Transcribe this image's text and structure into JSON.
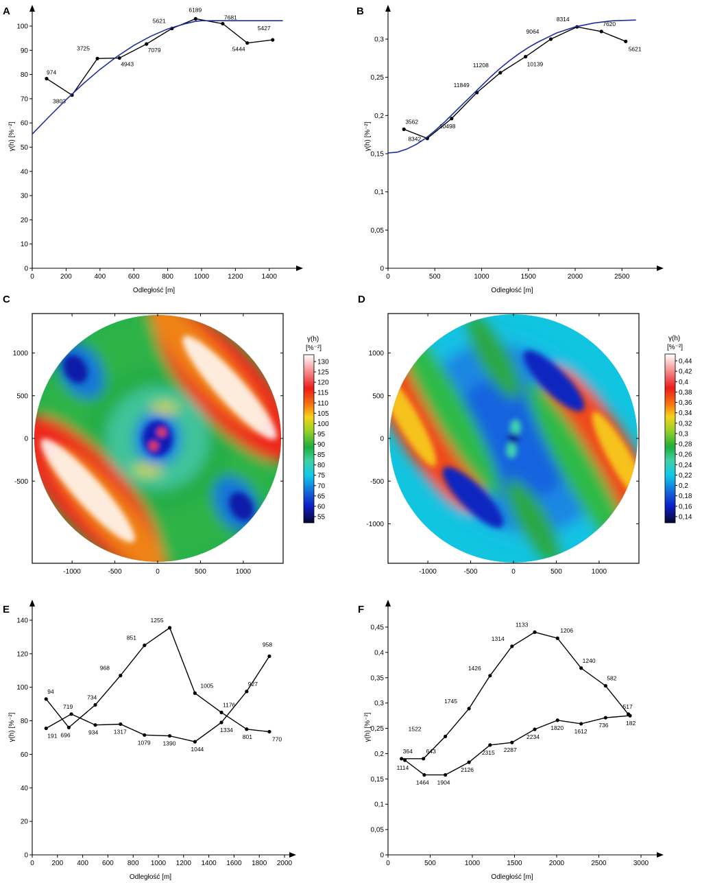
{
  "chart_data": [
    {
      "panel": "A",
      "type": "line",
      "xlabel": "Odległość [m]",
      "ylabel": "γ(h) [%⁻²]",
      "xlim": [
        0,
        1500
      ],
      "ylim": [
        0,
        100
      ],
      "xticks": [
        0,
        200,
        400,
        600,
        800,
        1000,
        1200,
        1400
      ],
      "yticks": [
        0,
        10,
        20,
        30,
        40,
        50,
        60,
        70,
        80,
        90,
        100
      ],
      "tick_format": "int",
      "x_arrow_max": 1570,
      "y_arrow_max": 109,
      "series": [
        {
          "role": "empirical",
          "points": [
            [
              85,
              78.3
            ],
            [
              235,
              71.5
            ],
            [
              385,
              86.6
            ],
            [
              515,
              86.8
            ],
            [
              675,
              92.6
            ],
            [
              825,
              99.0
            ],
            [
              965,
              103.0
            ],
            [
              1125,
              101.0
            ],
            [
              1270,
              93.0
            ],
            [
              1420,
              94.3
            ]
          ],
          "labels": [
            "974",
            "3803",
            "3725",
            "4943",
            "7079",
            "5621",
            "6189",
            "7681",
            "5444",
            "5427"
          ]
        },
        {
          "role": "model",
          "color": "#1c2d9c",
          "points": [
            [
              0,
              55.4
            ],
            [
              100,
              62.6
            ],
            [
              200,
              69.6
            ],
            [
              300,
              76.1
            ],
            [
              400,
              82.1
            ],
            [
              500,
              87.4
            ],
            [
              600,
              92.0
            ],
            [
              700,
              95.8
            ],
            [
              800,
              98.8
            ],
            [
              900,
              100.9
            ],
            [
              960,
              101.9
            ],
            [
              1000,
              102.2
            ],
            [
              1100,
              102.2
            ],
            [
              1200,
              102.2
            ],
            [
              1300,
              102.2
            ],
            [
              1480,
              102.2
            ]
          ]
        }
      ]
    },
    {
      "panel": "B",
      "type": "line",
      "xlabel": "Odległość [m]",
      "ylabel": "γ(h) [%⁻²]",
      "xlim": [
        0,
        2750
      ],
      "ylim": [
        0,
        0.3
      ],
      "xticks": [
        0,
        500,
        1000,
        1500,
        2000,
        2500
      ],
      "yticks": [
        0,
        0.05,
        0.1,
        0.15,
        0.2,
        0.25,
        0.3
      ],
      "tick_format": "comma2",
      "x_arrow_max": 2940,
      "y_arrow_max": 0.339,
      "series": [
        {
          "role": "empirical",
          "points": [
            [
              170,
              0.182
            ],
            [
              420,
              0.17
            ],
            [
              680,
              0.196
            ],
            [
              950,
              0.23
            ],
            [
              1200,
              0.256
            ],
            [
              1470,
              0.277
            ],
            [
              1740,
              0.3
            ],
            [
              2020,
              0.316
            ],
            [
              2280,
              0.31
            ],
            [
              2540,
              0.297
            ]
          ],
          "labels": [
            "3562",
            "8342",
            "10498",
            "11849",
            "11208",
            "10139",
            "9064",
            "8314",
            "7620",
            "5621"
          ]
        },
        {
          "role": "model",
          "color": "#1c2d9c",
          "points": [
            [
              0,
              0.151
            ],
            [
              100,
              0.152
            ],
            [
              200,
              0.156
            ],
            [
              300,
              0.162
            ],
            [
              400,
              0.17
            ],
            [
              500,
              0.18
            ],
            [
              600,
              0.191
            ],
            [
              700,
              0.203
            ],
            [
              800,
              0.215
            ],
            [
              900,
              0.227
            ],
            [
              1000,
              0.239
            ],
            [
              1100,
              0.251
            ],
            [
              1200,
              0.262
            ],
            [
              1300,
              0.272
            ],
            [
              1400,
              0.281
            ],
            [
              1500,
              0.289
            ],
            [
              1600,
              0.296
            ],
            [
              1700,
              0.302
            ],
            [
              1800,
              0.308
            ],
            [
              1900,
              0.312
            ],
            [
              2000,
              0.316
            ],
            [
              2200,
              0.321
            ],
            [
              2400,
              0.324
            ],
            [
              2650,
              0.325
            ]
          ]
        }
      ]
    },
    {
      "panel": "C",
      "type": "heatmap",
      "xlim": [
        -1420,
        1420
      ],
      "ylim": [
        -1420,
        1420
      ],
      "xticks": [
        -1000,
        -500,
        0,
        500,
        1000
      ],
      "yticks": [
        -500,
        0,
        500,
        1000
      ],
      "colorbar_title": "γ(h)",
      "colorbar_unit": "[%⁻²]",
      "colorbar_ticks": [
        "130",
        "125",
        "120",
        "115",
        "110",
        "105",
        "100",
        "95",
        "90",
        "85",
        "80",
        "75",
        "70",
        "65",
        "60",
        "55"
      ]
    },
    {
      "panel": "D",
      "type": "heatmap",
      "xlim": [
        -1420,
        1420
      ],
      "ylim": [
        -1420,
        1420
      ],
      "xticks": [
        -1000,
        -500,
        0,
        500,
        1000
      ],
      "yticks": [
        -1000,
        -500,
        0,
        500,
        1000
      ],
      "colorbar_title": "γ(h)",
      "colorbar_unit": "[%⁻²]",
      "colorbar_ticks": [
        "0,44",
        "0,42",
        "0,4",
        "0,38",
        "0,36",
        "0,34",
        "0,32",
        "0,3",
        "0,28",
        "0,26",
        "0,24",
        "0,22",
        "0,2",
        "0,18",
        "0,16",
        "0,14"
      ]
    },
    {
      "panel": "E",
      "type": "line",
      "xlabel": "Odległość [m]",
      "ylabel": "γ(h) [%⁻²]",
      "xlim": [
        0,
        2000
      ],
      "ylim": [
        0,
        140
      ],
      "xticks": [
        0,
        200,
        400,
        600,
        800,
        1000,
        1200,
        1400,
        1600,
        1800,
        2000
      ],
      "yticks": [
        0,
        20,
        40,
        60,
        80,
        100,
        120,
        140
      ],
      "tick_format": "int",
      "x_arrow_max": 2150,
      "y_arrow_max": 148,
      "series": [
        {
          "role": "direction-1",
          "points": [
            [
              110,
              93.0
            ],
            [
              290,
              76.0
            ],
            [
              500,
              89.5
            ],
            [
              700,
              107.0
            ],
            [
              890,
              125.0
            ],
            [
              1090,
              135.5
            ],
            [
              1290,
              96.5
            ],
            [
              1500,
              85.0
            ],
            [
              1700,
              75.0
            ],
            [
              1880,
              73.5
            ]
          ],
          "labels": [
            "94",
            "696",
            "734",
            "968",
            "851",
            "1255",
            "1005",
            "1176",
            "801",
            "770"
          ]
        },
        {
          "role": "direction-2",
          "points": [
            [
              110,
              75.5
            ],
            [
              310,
              84.0
            ],
            [
              500,
              77.5
            ],
            [
              700,
              78.0
            ],
            [
              890,
              71.5
            ],
            [
              1090,
              71.0
            ],
            [
              1290,
              67.5
            ],
            [
              1500,
              79.0
            ],
            [
              1700,
              97.5
            ],
            [
              1880,
              118.5
            ]
          ],
          "labels": [
            "191",
            "719",
            "934",
            "1317",
            "1079",
            "1390",
            "1044",
            "1334",
            "927",
            "958"
          ]
        }
      ]
    },
    {
      "panel": "F",
      "type": "line",
      "xlabel": "Odległość [m]",
      "ylabel": "γ(h) [%⁻²]",
      "xlim": [
        0,
        3000
      ],
      "ylim": [
        0,
        0.45
      ],
      "xticks": [
        0,
        500,
        1000,
        1500,
        2000,
        2500,
        3000
      ],
      "yticks": [
        0,
        0.05,
        0.1,
        0.15,
        0.2,
        0.25,
        0.3,
        0.35,
        0.4,
        0.45
      ],
      "tick_format": "comma2",
      "x_arrow_max": 3120,
      "y_arrow_max": 0.49,
      "series": [
        {
          "role": "direction-1",
          "points": [
            [
              160,
              0.19
            ],
            [
              420,
              0.19
            ],
            [
              680,
              0.234
            ],
            [
              960,
              0.289
            ],
            [
              1210,
              0.354
            ],
            [
              1470,
              0.412
            ],
            [
              1740,
              0.44
            ],
            [
              2010,
              0.428
            ],
            [
              2290,
              0.369
            ],
            [
              2580,
              0.334
            ],
            [
              2850,
              0.278
            ]
          ],
          "labels": [
            "364",
            "643",
            "1522",
            "1745",
            "1426",
            "1314",
            "1133",
            "1206",
            "1240",
            "582",
            "517"
          ]
        },
        {
          "role": "direction-2",
          "points": [
            [
              200,
              0.187
            ],
            [
              430,
              0.158
            ],
            [
              680,
              0.158
            ],
            [
              960,
              0.183
            ],
            [
              1210,
              0.217
            ],
            [
              1470,
              0.222
            ],
            [
              1740,
              0.248
            ],
            [
              2010,
              0.266
            ],
            [
              2290,
              0.259
            ],
            [
              2580,
              0.271
            ],
            [
              2870,
              0.275
            ]
          ],
          "labels": [
            "1114",
            "1464",
            "1904",
            "2126",
            "2315",
            "2287",
            "2234",
            "1820",
            "1612",
            "736",
            "182"
          ]
        }
      ]
    }
  ]
}
